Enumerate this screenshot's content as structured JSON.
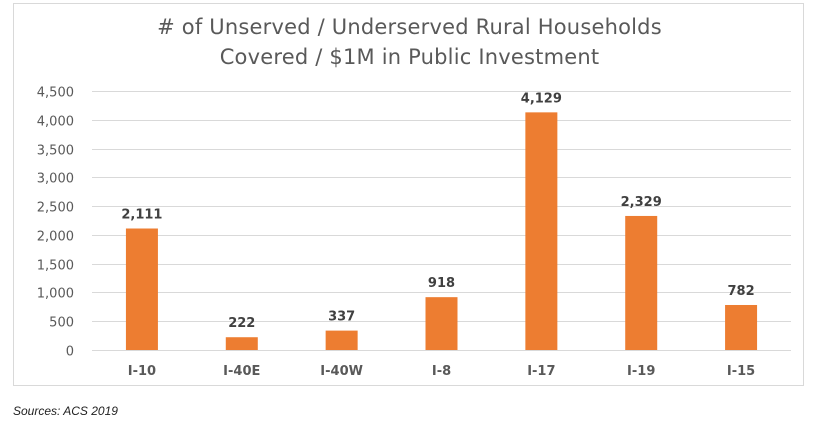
{
  "chart_data": {
    "type": "bar",
    "title_lines": [
      "# of Unserved / Underserved Rural Households",
      "Covered / $1M in Public Investment"
    ],
    "categories": [
      "I-10",
      "I-40E",
      "I-40W",
      "I-8",
      "I-17",
      "I-19",
      "I-15"
    ],
    "values": [
      2111,
      222,
      337,
      918,
      4129,
      2329,
      782
    ],
    "value_labels": [
      "2,111",
      "222",
      "337",
      "918",
      "4,129",
      "2,329",
      "782"
    ],
    "y_ticks": [
      0,
      500,
      1000,
      1500,
      2000,
      2500,
      3000,
      3500,
      4000,
      4500
    ],
    "y_tick_labels": [
      "0",
      "500",
      "1,000",
      "1,500",
      "2,000",
      "2,500",
      "3,000",
      "3,500",
      "4,000",
      "4,500"
    ],
    "ylim": [
      0,
      4500
    ],
    "xlabel": "",
    "ylabel": "",
    "grid": true,
    "legend": "none",
    "bar_color": "#ed7d31",
    "grid_color": "#d9d9d9",
    "text_color": "#595959"
  },
  "source": "Sources: ACS 2019"
}
